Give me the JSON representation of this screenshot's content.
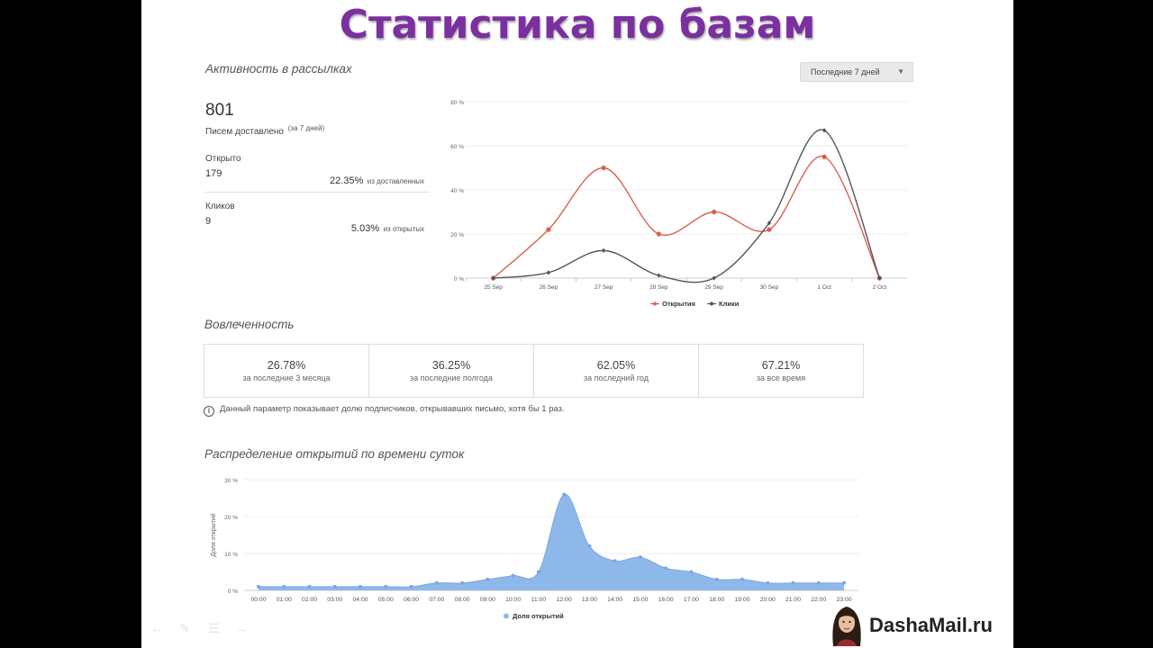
{
  "slide": {
    "title": "Статистика по базам",
    "brand": "DashaMail.ru"
  },
  "activity": {
    "section_title": "Активность в рассылках",
    "period_dropdown": {
      "selected": "Последние 7 дней"
    },
    "delivered": {
      "value": "801",
      "label": "Писем доставлено",
      "sub": "(за 7 дней)"
    },
    "opened": {
      "label": "Открыто",
      "value": "179",
      "percent": "22.35%",
      "percent_note": "из доставленных"
    },
    "clicks": {
      "label": "Кликов",
      "value": "9",
      "percent": "5.03%",
      "percent_note": "из открытых"
    }
  },
  "engagement": {
    "section_title": "Вовлеченность",
    "items": [
      {
        "value": "26.78%",
        "label": "за последние 3 месяца"
      },
      {
        "value": "36.25%",
        "label": "за последние полгода"
      },
      {
        "value": "62.05%",
        "label": "за последний год"
      },
      {
        "value": "67.21%",
        "label": "за все время"
      }
    ],
    "info_text": "Данный параметр показывает долю подписчиков, открывавших письмо, хотя бы 1 раз."
  },
  "distribution": {
    "section_title": "Распределение открытий по времени суток"
  },
  "colors": {
    "title": "#7b2fa0",
    "opens": "#d9604f",
    "clicks": "#555555",
    "area": "#8fb8ea"
  },
  "chart_data": [
    {
      "type": "line",
      "categories": [
        "25 Sep",
        "26 Sep",
        "27 Sep",
        "28 Sep",
        "29 Sep",
        "30 Sep",
        "1 Oct",
        "2 Oct"
      ],
      "yticks": [
        "0 %",
        "20 %",
        "40 %",
        "60 %",
        "80 %"
      ],
      "ylim": [
        0,
        80
      ],
      "series": [
        {
          "name": "Открытия",
          "values": [
            0,
            22,
            50,
            20,
            30,
            22,
            55,
            0
          ]
        },
        {
          "name": "Клики",
          "values": [
            0,
            2.5,
            12.5,
            1.2,
            0,
            25,
            67,
            0
          ]
        }
      ],
      "grid": true,
      "legend": "bottom"
    },
    {
      "type": "area",
      "categories": [
        "00:00",
        "01:00",
        "02:00",
        "03:00",
        "04:00",
        "05:00",
        "06:00",
        "07:00",
        "08:00",
        "09:00",
        "10:00",
        "11:00",
        "12:00",
        "13:00",
        "14:00",
        "15:00",
        "16:00",
        "17:00",
        "18:00",
        "19:00",
        "20:00",
        "21:00",
        "22:00",
        "23:00"
      ],
      "yticks": [
        "0 %",
        "10 %",
        "20 %",
        "30 %"
      ],
      "ylim": [
        0,
        30
      ],
      "ylabel": "Доля открытий",
      "series": [
        {
          "name": "Доля открытий",
          "values": [
            1,
            1,
            1,
            1,
            1,
            1,
            1,
            2,
            2,
            3,
            4,
            5,
            26,
            12,
            8,
            9,
            6,
            5,
            3,
            3,
            2,
            2,
            2,
            2
          ]
        }
      ],
      "grid": true,
      "legend": "bottom"
    }
  ]
}
